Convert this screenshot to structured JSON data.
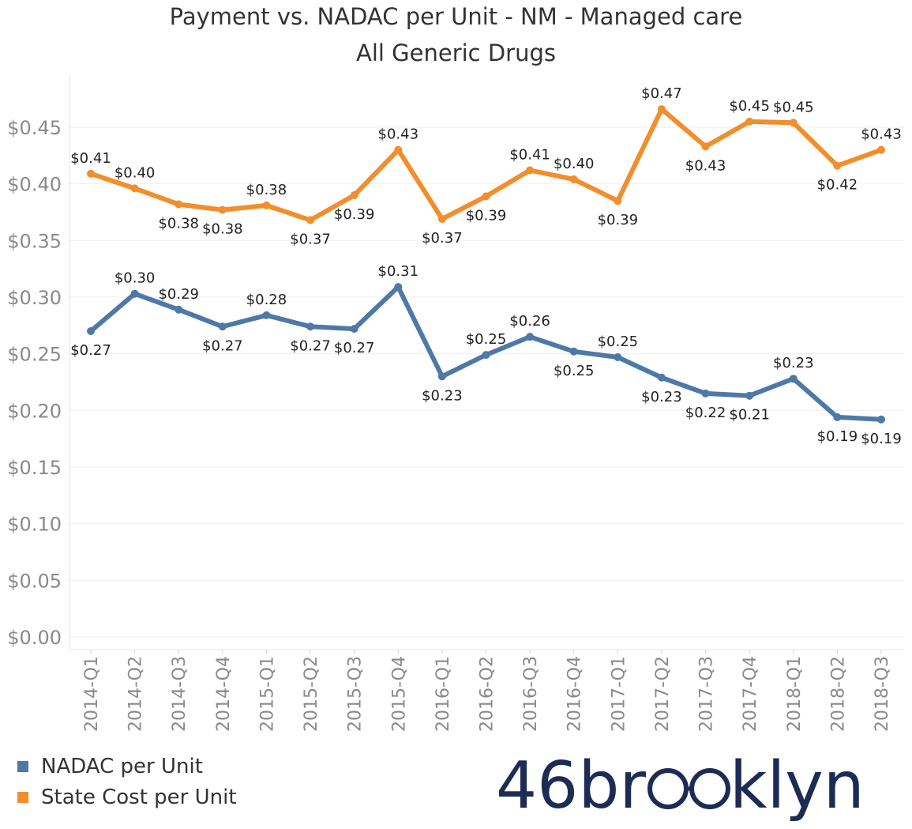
{
  "chart_data": {
    "type": "line",
    "title": "Payment vs. NADAC per Unit - NM - Managed care",
    "subtitle": "All Generic Drugs",
    "categories": [
      "2014-Q1",
      "2014-Q2",
      "2014-Q3",
      "2014-Q4",
      "2015-Q1",
      "2015-Q2",
      "2015-Q3",
      "2015-Q4",
      "2016-Q1",
      "2016-Q2",
      "2016-Q3",
      "2016-Q4",
      "2017-Q1",
      "2017-Q2",
      "2017-Q3",
      "2017-Q4",
      "2018-Q1",
      "2018-Q2",
      "2018-Q3"
    ],
    "ylim": [
      0,
      0.48
    ],
    "yticks": [
      0.0,
      0.05,
      0.1,
      0.15,
      0.2,
      0.25,
      0.3,
      0.35,
      0.4,
      0.45
    ],
    "ytick_labels": [
      "$0.00",
      "$0.05",
      "$0.10",
      "$0.15",
      "$0.20",
      "$0.25",
      "$0.30",
      "$0.35",
      "$0.40",
      "$0.45"
    ],
    "grid": true,
    "legend_position": "bottom-left",
    "series": [
      {
        "name": "NADAC per Unit",
        "color": "#4e79a7",
        "values": [
          0.27,
          0.303,
          0.289,
          0.274,
          0.284,
          0.274,
          0.272,
          0.309,
          0.23,
          0.249,
          0.265,
          0.252,
          0.247,
          0.229,
          0.215,
          0.213,
          0.228,
          0.194,
          0.192
        ],
        "labels": [
          "$0.27",
          "$0.30",
          "$0.29",
          "$0.27",
          "$0.28",
          "$0.27",
          "$0.27",
          "$0.31",
          "$0.23",
          "$0.25",
          "$0.26",
          "$0.25",
          "$0.25",
          "$0.23",
          "$0.22",
          "$0.21",
          "$0.23",
          "$0.19",
          "$0.19"
        ],
        "label_pos": [
          "below",
          "above",
          "above",
          "below",
          "above",
          "below",
          "below",
          "above",
          "below",
          "above",
          "above",
          "below",
          "above",
          "below",
          "below",
          "below",
          "above",
          "below",
          "below"
        ]
      },
      {
        "name": "State Cost per Unit",
        "color": "#f28e2b",
        "values": [
          0.409,
          0.396,
          0.382,
          0.377,
          0.381,
          0.368,
          0.39,
          0.43,
          0.369,
          0.389,
          0.412,
          0.404,
          0.385,
          0.466,
          0.433,
          0.455,
          0.454,
          0.416,
          0.43
        ],
        "labels": [
          "$0.41",
          "$0.40",
          "$0.38",
          "$0.38",
          "$0.38",
          "$0.37",
          "$0.39",
          "$0.43",
          "$0.37",
          "$0.39",
          "$0.41",
          "$0.40",
          "$0.39",
          "$0.47",
          "$0.43",
          "$0.45",
          "$0.45",
          "$0.42",
          "$0.43"
        ],
        "label_pos": [
          "above",
          "above",
          "below",
          "below",
          "above",
          "below",
          "below",
          "above",
          "below",
          "below",
          "above",
          "above",
          "below",
          "above",
          "below",
          "above",
          "above",
          "below",
          "above"
        ]
      }
    ]
  },
  "logo": {
    "text_part1": "46br",
    "text_part2": "klyn",
    "color": "#1c2c55"
  }
}
